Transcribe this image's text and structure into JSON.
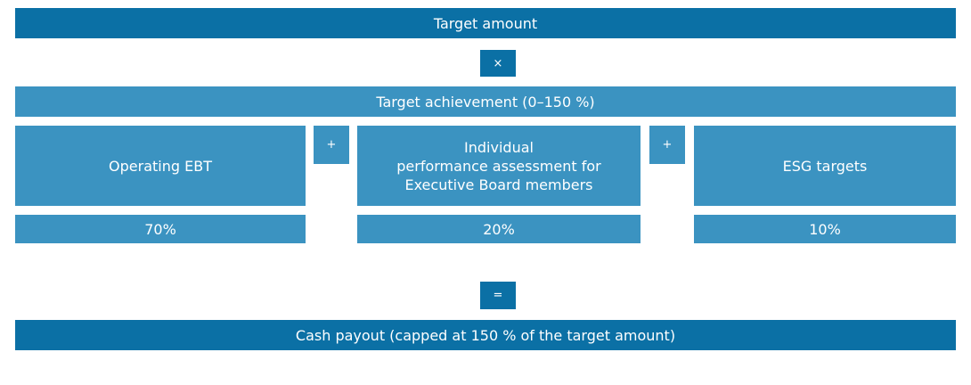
{
  "top": {
    "label": "Target amount",
    "operator": "×"
  },
  "achievement": {
    "label": "Target achievement (0–150 %)"
  },
  "components": [
    {
      "label": "Operating EBT",
      "weight": "70%"
    },
    {
      "label": "Individual\nperformance assessment for\nExecutive Board members",
      "weight": "20%"
    },
    {
      "label": "ESG targets",
      "weight": "10%"
    }
  ],
  "plus_operators": [
    "+",
    "+"
  ],
  "result": {
    "operator": "=",
    "label": "Cash payout (capped at 150 % of the target amount)"
  }
}
